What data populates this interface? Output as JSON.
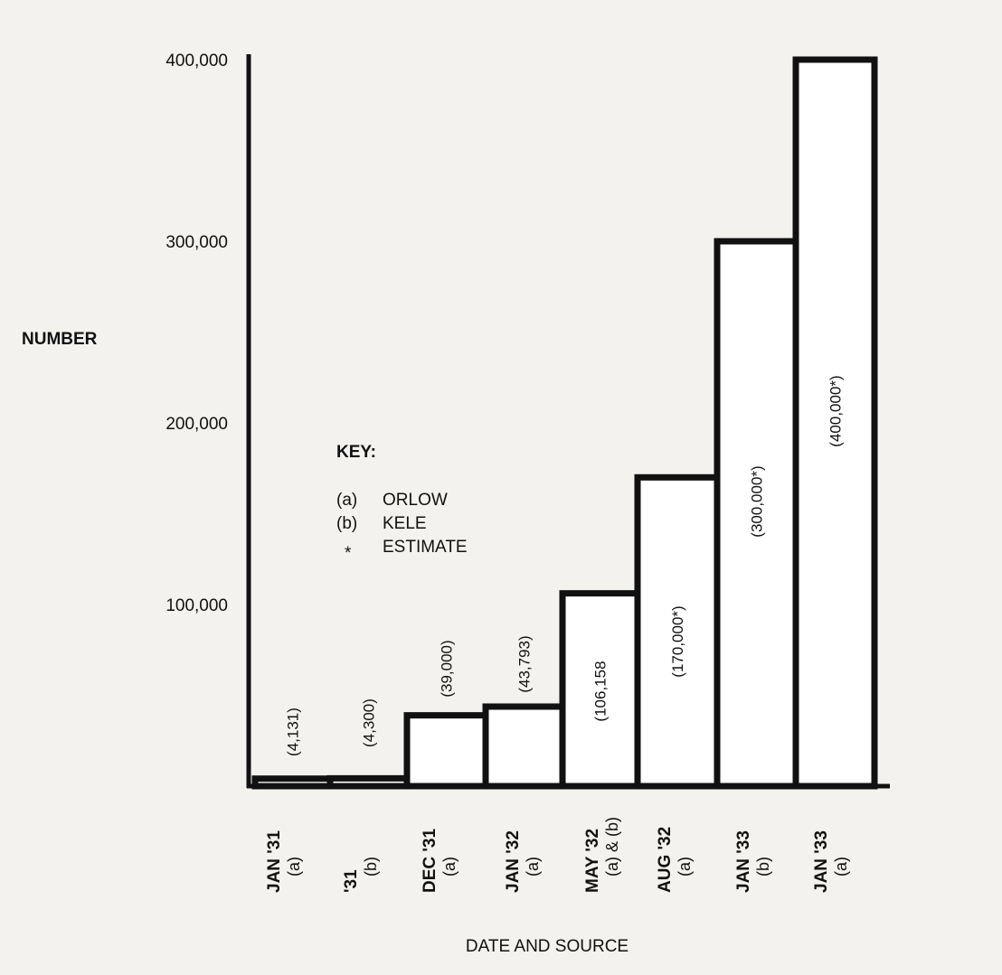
{
  "chart_data": {
    "type": "bar",
    "title": "",
    "xlabel": "DATE AND SOURCE",
    "ylabel": "NUMBER",
    "ylim": [
      0,
      400000
    ],
    "yticks": [
      100000,
      200000,
      300000,
      400000
    ],
    "ytick_labels": [
      "100,000",
      "200,000",
      "300,000",
      "400,000"
    ],
    "grid": false,
    "categories": [
      {
        "date": "JAN '31",
        "source": "(a)"
      },
      {
        "date": "'31",
        "source": "(b)"
      },
      {
        "date": "DEC '31",
        "source": "(a)"
      },
      {
        "date": "JAN '32",
        "source": "(a)"
      },
      {
        "date": "MAY '32",
        "source": "(a) & (b)"
      },
      {
        "date": "AUG '32",
        "source": "(a)"
      },
      {
        "date": "JAN '33",
        "source": "(b)"
      },
      {
        "date": "JAN '33",
        "source": "(a)"
      }
    ],
    "values": [
      4131,
      4300,
      39000,
      43793,
      106158,
      170000,
      300000,
      400000
    ],
    "data_labels": [
      "(4,131)",
      "(4,300)",
      "(39,000)",
      "(43,793)",
      "(106,158",
      "(170,000*)",
      "(300,000*)",
      "(400,000*)"
    ],
    "legend": {
      "title": "KEY:",
      "placement": "center-left",
      "entries": [
        {
          "symbol": "(a)",
          "label": "ORLOW"
        },
        {
          "symbol": "(b)",
          "label": "KELE"
        },
        {
          "symbol": "*",
          "label": "ESTIMATE"
        }
      ]
    },
    "colors": {
      "bar_outline": "#111111",
      "bar_fill": "#ffffff",
      "background": "#f3f2ee"
    }
  }
}
